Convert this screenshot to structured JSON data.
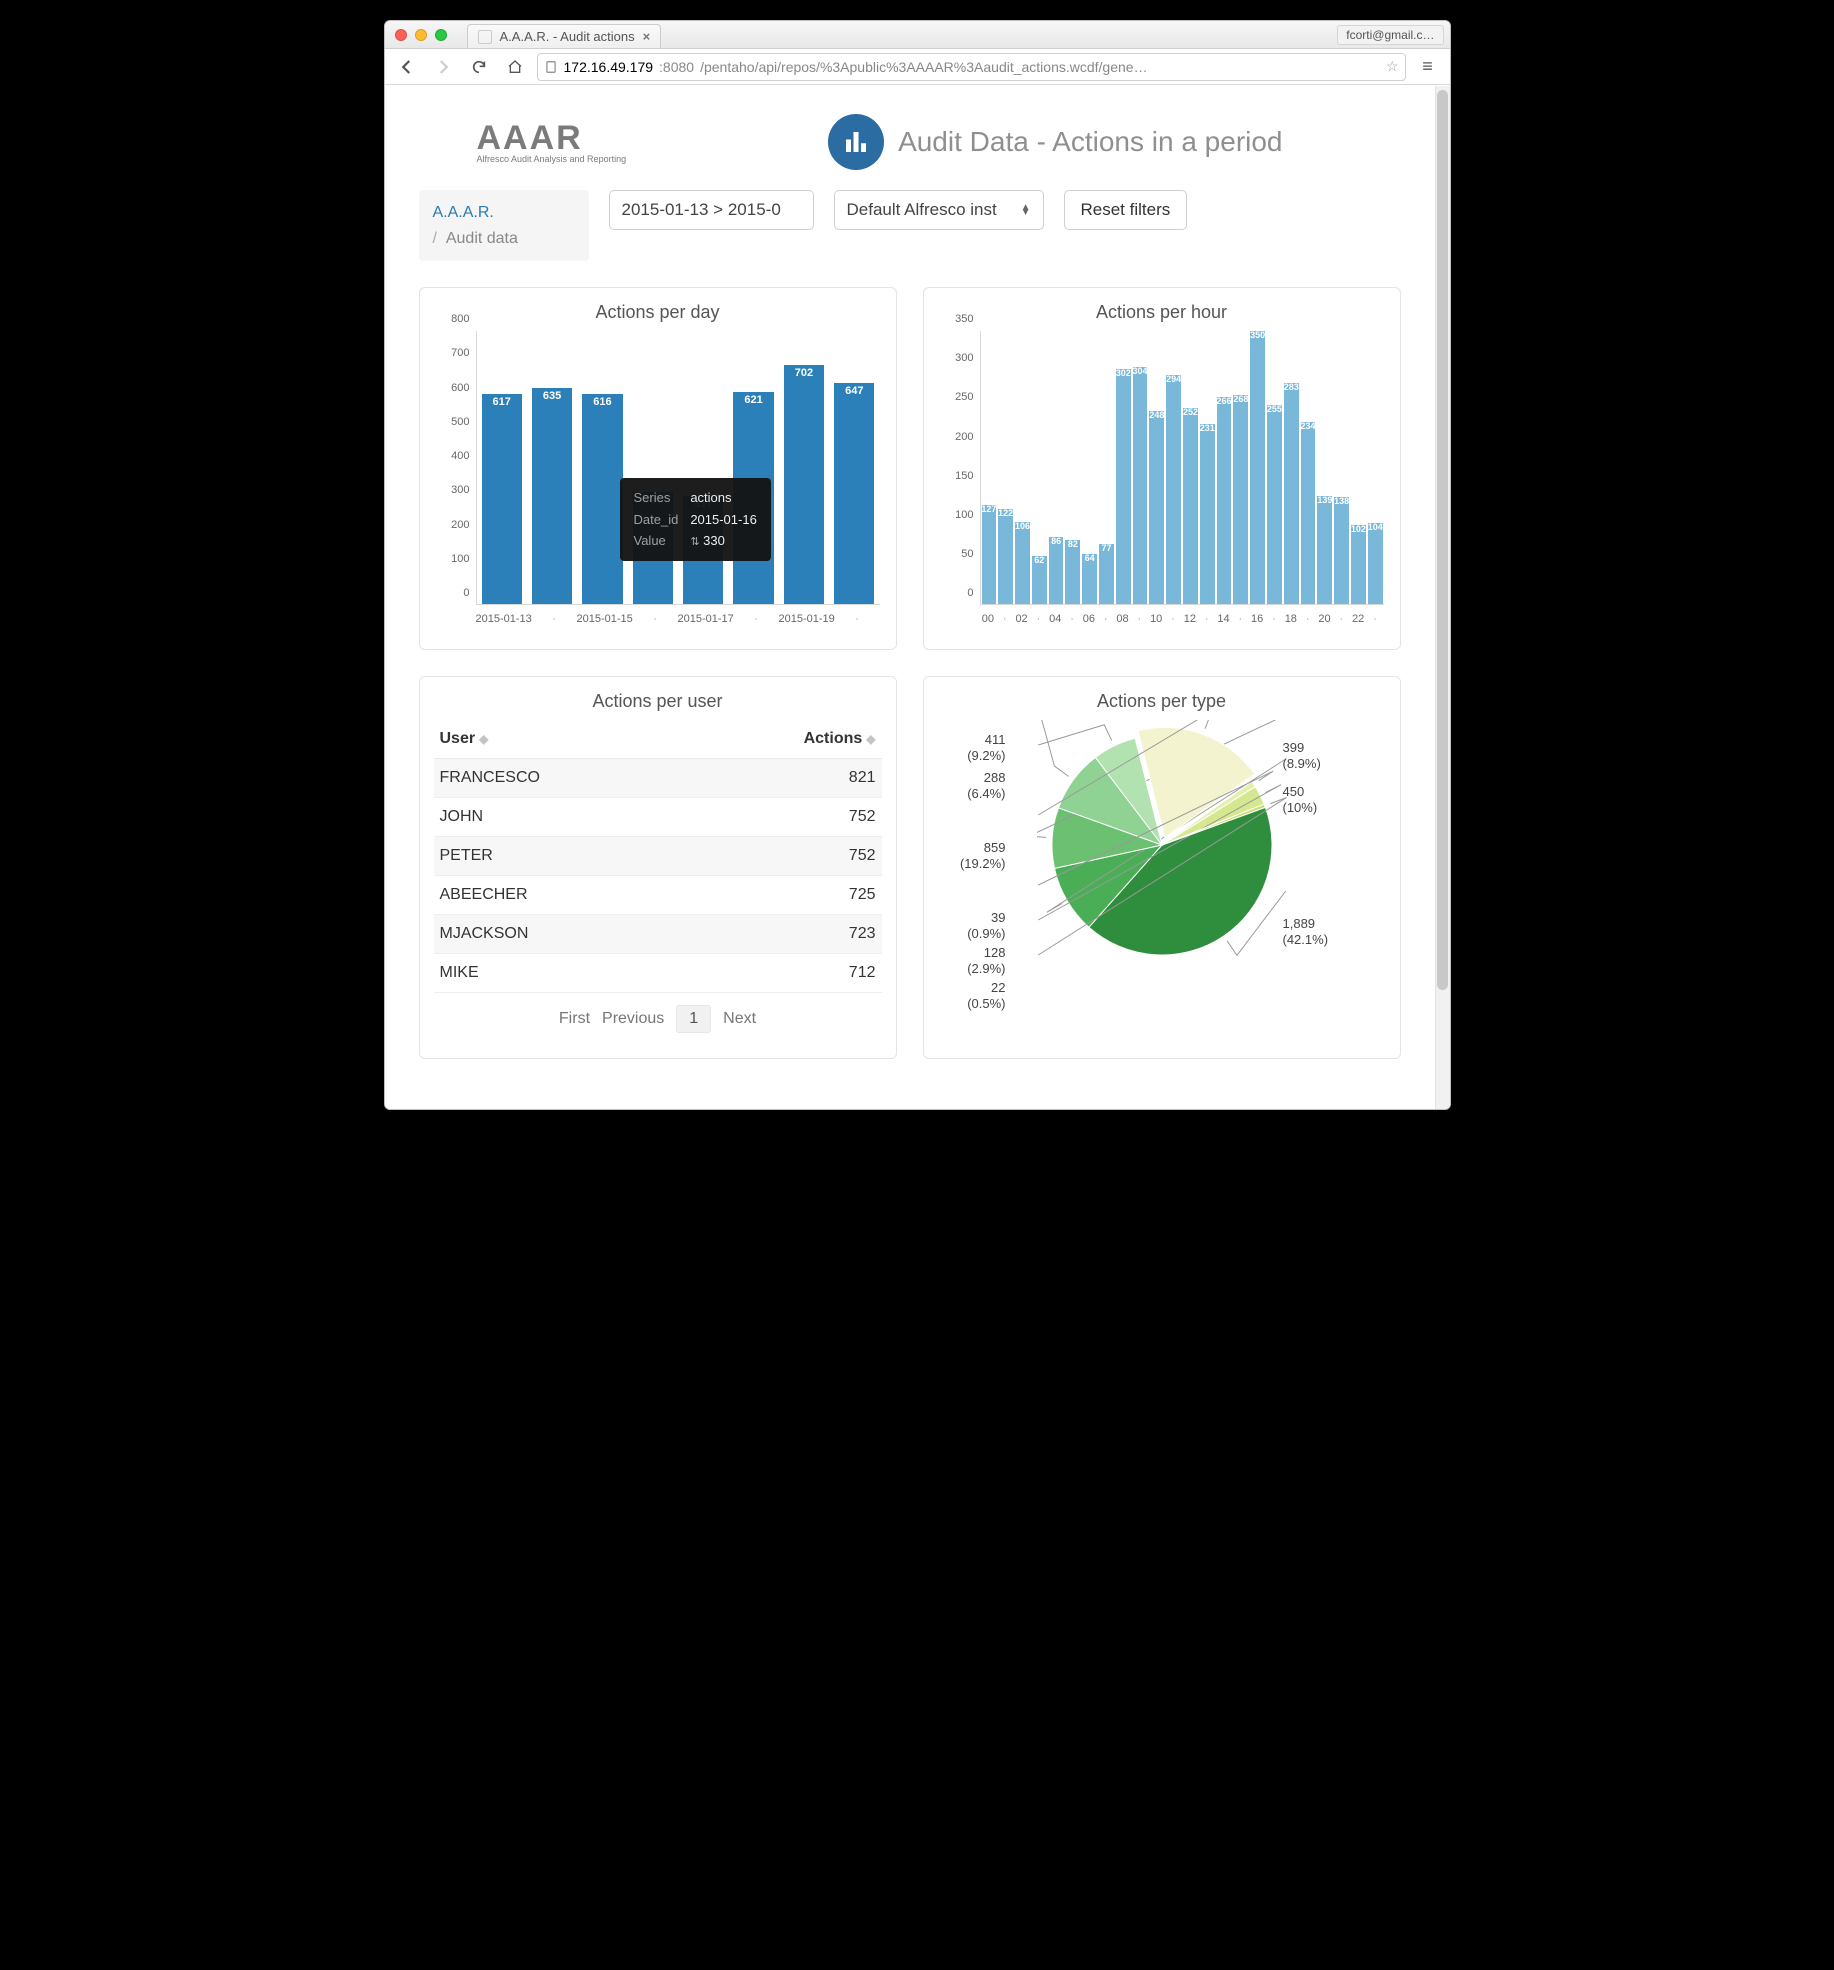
{
  "browser": {
    "tab_title": "A.A.A.R. - Audit actions",
    "profile": "fcorti@gmail.c…",
    "url_host": "172.16.49.179",
    "url_port": ":8080",
    "url_path": "/pentaho/api/repos/%3Apublic%3AAAAR%3Aaudit_actions.wcdf/gene…"
  },
  "logo": {
    "title": "AAAR",
    "subtitle": "Alfresco Audit Analysis and Reporting"
  },
  "page_title": "Audit Data - Actions in a period",
  "breadcrumb": {
    "root": "A.A.A.R.",
    "sep": "/",
    "leaf": "Audit data"
  },
  "controls": {
    "date_range": "2015-01-13 > 2015-0",
    "instance_select": "Default Alfresco inst",
    "reset_label": "Reset filters"
  },
  "tooltip": {
    "k1": "Series",
    "v1": "actions",
    "k2": "Date_id",
    "v2": "2015-01-16",
    "k3": "Value",
    "v3": "330"
  },
  "chart_day": {
    "title": "Actions per day",
    "type": "bar",
    "bar_color": "#2b80b9",
    "ylim_max": 800,
    "ytick_step": 100,
    "categories": [
      "2015-01-13",
      "·",
      "2015-01-15",
      "·",
      "2015-01-17",
      "·",
      "2015-01-19",
      "·"
    ],
    "values": [
      617,
      635,
      616,
      330,
      317,
      621,
      702,
      647
    ]
  },
  "chart_hour": {
    "title": "Actions per hour",
    "type": "bar",
    "bar_color": "#7ab8d9",
    "ylim_max": 350,
    "ytick_step": 50,
    "categories": [
      "00",
      "·",
      "02",
      "·",
      "04",
      "·",
      "06",
      "·",
      "08",
      "·",
      "10",
      "·",
      "12",
      "·",
      "14",
      "·",
      "16",
      "·",
      "18",
      "·",
      "20",
      "·",
      "22",
      "·"
    ],
    "values": [
      127,
      122,
      106,
      62,
      86,
      82,
      64,
      77,
      302,
      304,
      248,
      294,
      252,
      231,
      266,
      268,
      350,
      255,
      283,
      234,
      139,
      138,
      102,
      104
    ]
  },
  "table_users": {
    "title": "Actions per user",
    "col_user": "User",
    "col_actions": "Actions",
    "rows": [
      {
        "u": "FRANCESCO",
        "a": "821"
      },
      {
        "u": "JOHN",
        "a": "752"
      },
      {
        "u": "PETER",
        "a": "752"
      },
      {
        "u": "ABEECHER",
        "a": "725"
      },
      {
        "u": "MJACKSON",
        "a": "723"
      },
      {
        "u": "MIKE",
        "a": "712"
      }
    ],
    "pager": {
      "first": "First",
      "prev": "Previous",
      "cur": "1",
      "next": "Next"
    }
  },
  "pie": {
    "title": "Actions per type",
    "type": "pie",
    "slices": [
      {
        "value": 1889,
        "pct": "42.1%",
        "label": "1,889",
        "color": "#2f8e3d"
      },
      {
        "value": 450,
        "pct": "10%",
        "label": "450",
        "color": "#4aae56"
      },
      {
        "value": 399,
        "pct": "8.9%",
        "label": "399",
        "color": "#6cc072"
      },
      {
        "value": 411,
        "pct": "9.2%",
        "label": "411",
        "color": "#8fd294"
      },
      {
        "value": 288,
        "pct": "6.4%",
        "label": "288",
        "color": "#b3e2b1"
      },
      {
        "value": 859,
        "pct": "19.2%",
        "label": "859",
        "color": "#f3f4cf"
      },
      {
        "value": 39,
        "pct": "0.9%",
        "label": "39",
        "color": "#e4efb0"
      },
      {
        "value": 128,
        "pct": "2.9%",
        "label": "128",
        "color": "#d6e88f"
      },
      {
        "value": 22,
        "pct": "0.5%",
        "label": "22",
        "color": "#c7e16f"
      }
    ]
  }
}
